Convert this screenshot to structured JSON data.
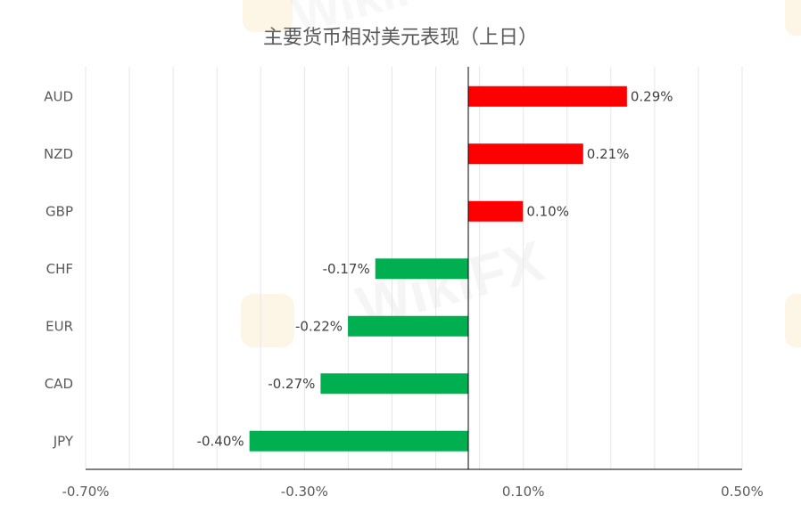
{
  "chart_data": {
    "type": "bar",
    "orientation": "horizontal",
    "title": "主要货币相对美元表现（上日）",
    "categories": [
      "AUD",
      "NZD",
      "GBP",
      "CHF",
      "EUR",
      "CAD",
      "JPY"
    ],
    "values": [
      0.29,
      0.21,
      0.1,
      -0.17,
      -0.22,
      -0.27,
      -0.4
    ],
    "value_labels": [
      "0.29%",
      "0.21%",
      "0.10%",
      "-0.17%",
      "-0.22%",
      "-0.27%",
      "-0.40%"
    ],
    "xlim": [
      -0.7,
      0.5
    ],
    "x_ticks": [
      -0.7,
      -0.3,
      0.1,
      0.5
    ],
    "x_tick_labels": [
      "-0.70%",
      "-0.30%",
      "0.10%",
      "0.50%"
    ],
    "grid": true,
    "legend": "none",
    "colors": {
      "positive": "#ff0000",
      "negative": "#00b050",
      "axis": "#000000",
      "grid": "#e6e6e6",
      "text": "#595959"
    }
  },
  "watermark": "WikiFX"
}
